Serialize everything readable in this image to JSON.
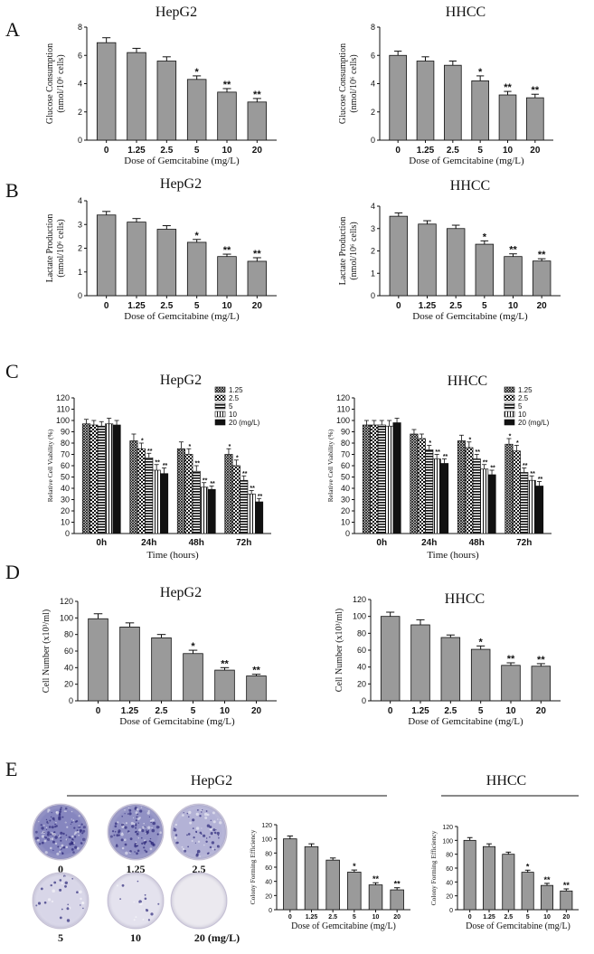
{
  "colors": {
    "bar": "#9a9a9a",
    "axis": "#111111",
    "stain_dark": "#5a5aa8",
    "stain_light": "#d8d0e8",
    "plate_bg": "#f2f0f6"
  },
  "panel_letters": [
    "A",
    "B",
    "C",
    "D",
    "E"
  ],
  "chart_data": [
    {
      "id": "A-hepg2",
      "type": "bar",
      "title": "HepG2",
      "xlabel": "Dose of Gemcitabine (mg/L)",
      "ylabel": [
        "Glucose Consumption",
        "(nmol/10⁶ cells)"
      ],
      "categories": [
        "0",
        "1.25",
        "2.5",
        "5",
        "10",
        "20"
      ],
      "values": [
        6.9,
        6.2,
        5.6,
        4.3,
        3.4,
        2.7
      ],
      "errors": [
        0.35,
        0.3,
        0.3,
        0.25,
        0.25,
        0.25
      ],
      "significance": [
        "",
        "",
        "",
        "*",
        "**",
        "**"
      ],
      "ylim": [
        0,
        8
      ],
      "yticks": [
        "0",
        "2",
        "4",
        "6",
        "8"
      ]
    },
    {
      "id": "A-hhcc",
      "type": "bar",
      "title": "HHCC",
      "xlabel": "Dose of Gemcitabine (mg/L)",
      "ylabel": [
        "Glucose Consumption",
        "(nmol/10⁶ cells)"
      ],
      "categories": [
        "0",
        "1.25",
        "2.5",
        "5",
        "10",
        "20"
      ],
      "values": [
        6.0,
        5.6,
        5.3,
        4.2,
        3.2,
        3.0
      ],
      "errors": [
        0.3,
        0.3,
        0.3,
        0.35,
        0.25,
        0.25
      ],
      "significance": [
        "",
        "",
        "",
        "*",
        "**",
        "**"
      ],
      "ylim": [
        0,
        8
      ],
      "yticks": [
        "0",
        "2",
        "4",
        "6",
        "8"
      ]
    },
    {
      "id": "B-hepg2",
      "type": "bar",
      "title": "HepG2",
      "xlabel": "Dose of Gemcitabine (mg/L)",
      "ylabel": [
        "Lactate Production",
        "(nmol/10⁶ cells)"
      ],
      "categories": [
        "0",
        "1.25",
        "2.5",
        "5",
        "10",
        "20"
      ],
      "values": [
        3.4,
        3.1,
        2.8,
        2.25,
        1.65,
        1.45
      ],
      "errors": [
        0.15,
        0.15,
        0.15,
        0.12,
        0.1,
        0.15
      ],
      "significance": [
        "",
        "",
        "",
        "*",
        "**",
        "**"
      ],
      "ylim": [
        0,
        4
      ],
      "yticks": [
        "0",
        "1",
        "2",
        "3",
        "4"
      ]
    },
    {
      "id": "B-hhcc",
      "type": "bar",
      "title": "HHCC",
      "xlabel": "Dose of Gemcitabine (mg/L)",
      "ylabel": [
        "Lactate Production",
        "(nmol/10⁶ cells)"
      ],
      "categories": [
        "0",
        "1.25",
        "2.5",
        "5",
        "10",
        "20"
      ],
      "values": [
        3.55,
        3.2,
        3.0,
        2.3,
        1.75,
        1.55
      ],
      "errors": [
        0.15,
        0.15,
        0.15,
        0.15,
        0.12,
        0.1
      ],
      "significance": [
        "",
        "",
        "",
        "*",
        "**",
        "**"
      ],
      "ylim": [
        0,
        4
      ],
      "yticks": [
        "0",
        "1",
        "2",
        "3",
        "4"
      ]
    },
    {
      "id": "C-hepg2",
      "type": "grouped-bar",
      "title": "HepG2",
      "xlabel": "Time (hours)",
      "ylabel": [
        "Relative Cell Viability (%)"
      ],
      "categories": [
        "0h",
        "24h",
        "48h",
        "72h"
      ],
      "legend": [
        "1.25",
        "2.5",
        "5",
        "10",
        "20 (mg/L)"
      ],
      "series": [
        {
          "name": "1.25",
          "pattern": "cross",
          "values": [
            97,
            82,
            75,
            70
          ],
          "errors": [
            4,
            6,
            6,
            5
          ],
          "significance": [
            "",
            "",
            "",
            "*"
          ]
        },
        {
          "name": "2.5",
          "pattern": "check",
          "values": [
            96,
            75,
            70,
            60
          ],
          "errors": [
            4,
            5,
            5,
            5
          ],
          "significance": [
            "",
            "*",
            "*",
            "*"
          ]
        },
        {
          "name": "5",
          "pattern": "hstripe",
          "values": [
            95,
            67,
            55,
            47
          ],
          "errors": [
            4,
            4,
            5,
            4
          ],
          "significance": [
            "",
            "**",
            "**",
            "**"
          ]
        },
        {
          "name": "10",
          "pattern": "vstripe",
          "values": [
            97,
            56,
            41,
            35
          ],
          "errors": [
            5,
            5,
            4,
            3
          ],
          "significance": [
            "",
            "**",
            "**",
            "**"
          ]
        },
        {
          "name": "20",
          "pattern": "solid",
          "values": [
            96,
            53,
            39,
            28
          ],
          "errors": [
            4,
            5,
            3,
            3
          ],
          "significance": [
            "",
            "**",
            "**",
            "**"
          ]
        }
      ],
      "ylim": [
        0,
        120
      ],
      "yticks": [
        "0",
        "10",
        "20",
        "30",
        "40",
        "50",
        "60",
        "70",
        "80",
        "90",
        "100",
        "110",
        "120"
      ]
    },
    {
      "id": "C-hhcc",
      "type": "grouped-bar",
      "title": "HHCC",
      "xlabel": "Time (hours)",
      "ylabel": [
        "Relative Cell Viability (%)"
      ],
      "categories": [
        "0h",
        "24h",
        "48h",
        "72h"
      ],
      "legend": [
        "1.25",
        "2.5",
        "5",
        "10",
        "20 (mg/L)"
      ],
      "series": [
        {
          "name": "1.25",
          "pattern": "cross",
          "values": [
            96,
            88,
            82,
            79
          ],
          "errors": [
            4,
            4,
            5,
            5
          ],
          "significance": [
            "",
            "",
            "",
            "*"
          ]
        },
        {
          "name": "2.5",
          "pattern": "check",
          "values": [
            96,
            84,
            76,
            73
          ],
          "errors": [
            4,
            4,
            5,
            5
          ],
          "significance": [
            "",
            "",
            "*",
            "*"
          ]
        },
        {
          "name": "5",
          "pattern": "hstripe",
          "values": [
            96,
            74,
            66,
            54
          ],
          "errors": [
            4,
            4,
            4,
            4
          ],
          "significance": [
            "",
            "*",
            "**",
            "**"
          ]
        },
        {
          "name": "10",
          "pattern": "vstripe",
          "values": [
            95,
            66,
            57,
            47
          ],
          "errors": [
            5,
            4,
            4,
            4
          ],
          "significance": [
            "",
            "**",
            "**",
            "**"
          ]
        },
        {
          "name": "20",
          "pattern": "solid",
          "values": [
            98,
            62,
            52,
            42
          ],
          "errors": [
            4,
            4,
            4,
            4
          ],
          "significance": [
            "",
            "**",
            "**",
            "**"
          ]
        }
      ],
      "ylim": [
        0,
        120
      ],
      "yticks": [
        "0",
        "10",
        "20",
        "30",
        "40",
        "50",
        "60",
        "70",
        "80",
        "90",
        "100",
        "110",
        "120"
      ]
    },
    {
      "id": "D-hepg2",
      "type": "bar",
      "title": "HepG2",
      "xlabel": "Dose of Gemcitabine (mg/L)",
      "ylabel": [
        "Cell Number (x10³/ml)"
      ],
      "categories": [
        "0",
        "1.25",
        "2.5",
        "5",
        "10",
        "20"
      ],
      "values": [
        99,
        89,
        76,
        57,
        37,
        30
      ],
      "errors": [
        6,
        5,
        4,
        4,
        3,
        2
      ],
      "significance": [
        "",
        "",
        "",
        "*",
        "**",
        "**"
      ],
      "ylim": [
        0,
        120
      ],
      "yticks": [
        "0",
        "20",
        "40",
        "60",
        "80",
        "100",
        "120"
      ]
    },
    {
      "id": "D-hhcc",
      "type": "bar",
      "title": "HHCC",
      "xlabel": "Dose of Gemcitabine (mg/L)",
      "ylabel": [
        "Cell Number (x10³/ml)"
      ],
      "categories": [
        "0",
        "1.25",
        "2.5",
        "5",
        "10",
        "20"
      ],
      "values": [
        100,
        90,
        75,
        61,
        42,
        41
      ],
      "errors": [
        5,
        6,
        3,
        4,
        3,
        3
      ],
      "significance": [
        "",
        "",
        "",
        "*",
        "**",
        "**"
      ],
      "ylim": [
        0,
        120
      ],
      "yticks": [
        "0",
        "20",
        "40",
        "60",
        "80",
        "100",
        "120"
      ]
    },
    {
      "id": "E-hepg2",
      "type": "bar",
      "title": "",
      "xlabel": "Dose of Gemcitabine (mg/L)",
      "ylabel": [
        "Colony Forming Efficiency"
      ],
      "categories": [
        "0",
        "1.25",
        "2.5",
        "5",
        "10",
        "20"
      ],
      "values": [
        100,
        89,
        70,
        53,
        35,
        28
      ],
      "errors": [
        4,
        4,
        3,
        3,
        3,
        3
      ],
      "significance": [
        "",
        "",
        "",
        "*",
        "**",
        "**"
      ],
      "ylim": [
        0,
        120
      ],
      "yticks": [
        "0",
        "20",
        "40",
        "60",
        "80",
        "100",
        "120"
      ]
    },
    {
      "id": "E-hhcc",
      "type": "bar",
      "title": "",
      "xlabel": "Dose of Gemcitabine (mg/L)",
      "ylabel": [
        "Colony Forming Efficiency"
      ],
      "categories": [
        "0",
        "1.25",
        "2.5",
        "5",
        "10",
        "20"
      ],
      "values": [
        100,
        91,
        80,
        54,
        35,
        27
      ],
      "errors": [
        4,
        4,
        3,
        3,
        3,
        3
      ],
      "significance": [
        "",
        "",
        "",
        "*",
        "**",
        "**"
      ],
      "ylim": [
        0,
        120
      ],
      "yticks": [
        "0",
        "20",
        "40",
        "60",
        "80",
        "100",
        "120"
      ]
    }
  ],
  "panel_e": {
    "hepg2_title": "HepG2",
    "hhcc_title": "HHCC",
    "plates": [
      {
        "label": "0",
        "stain": 0.95
      },
      {
        "label": "1.25",
        "stain": 0.85
      },
      {
        "label": "2.5",
        "stain": 0.55
      },
      {
        "label": "5",
        "stain": 0.22
      },
      {
        "label": "10",
        "stain": 0.12
      },
      {
        "label": "20 (mg/L)",
        "stain": 0.02
      }
    ]
  }
}
